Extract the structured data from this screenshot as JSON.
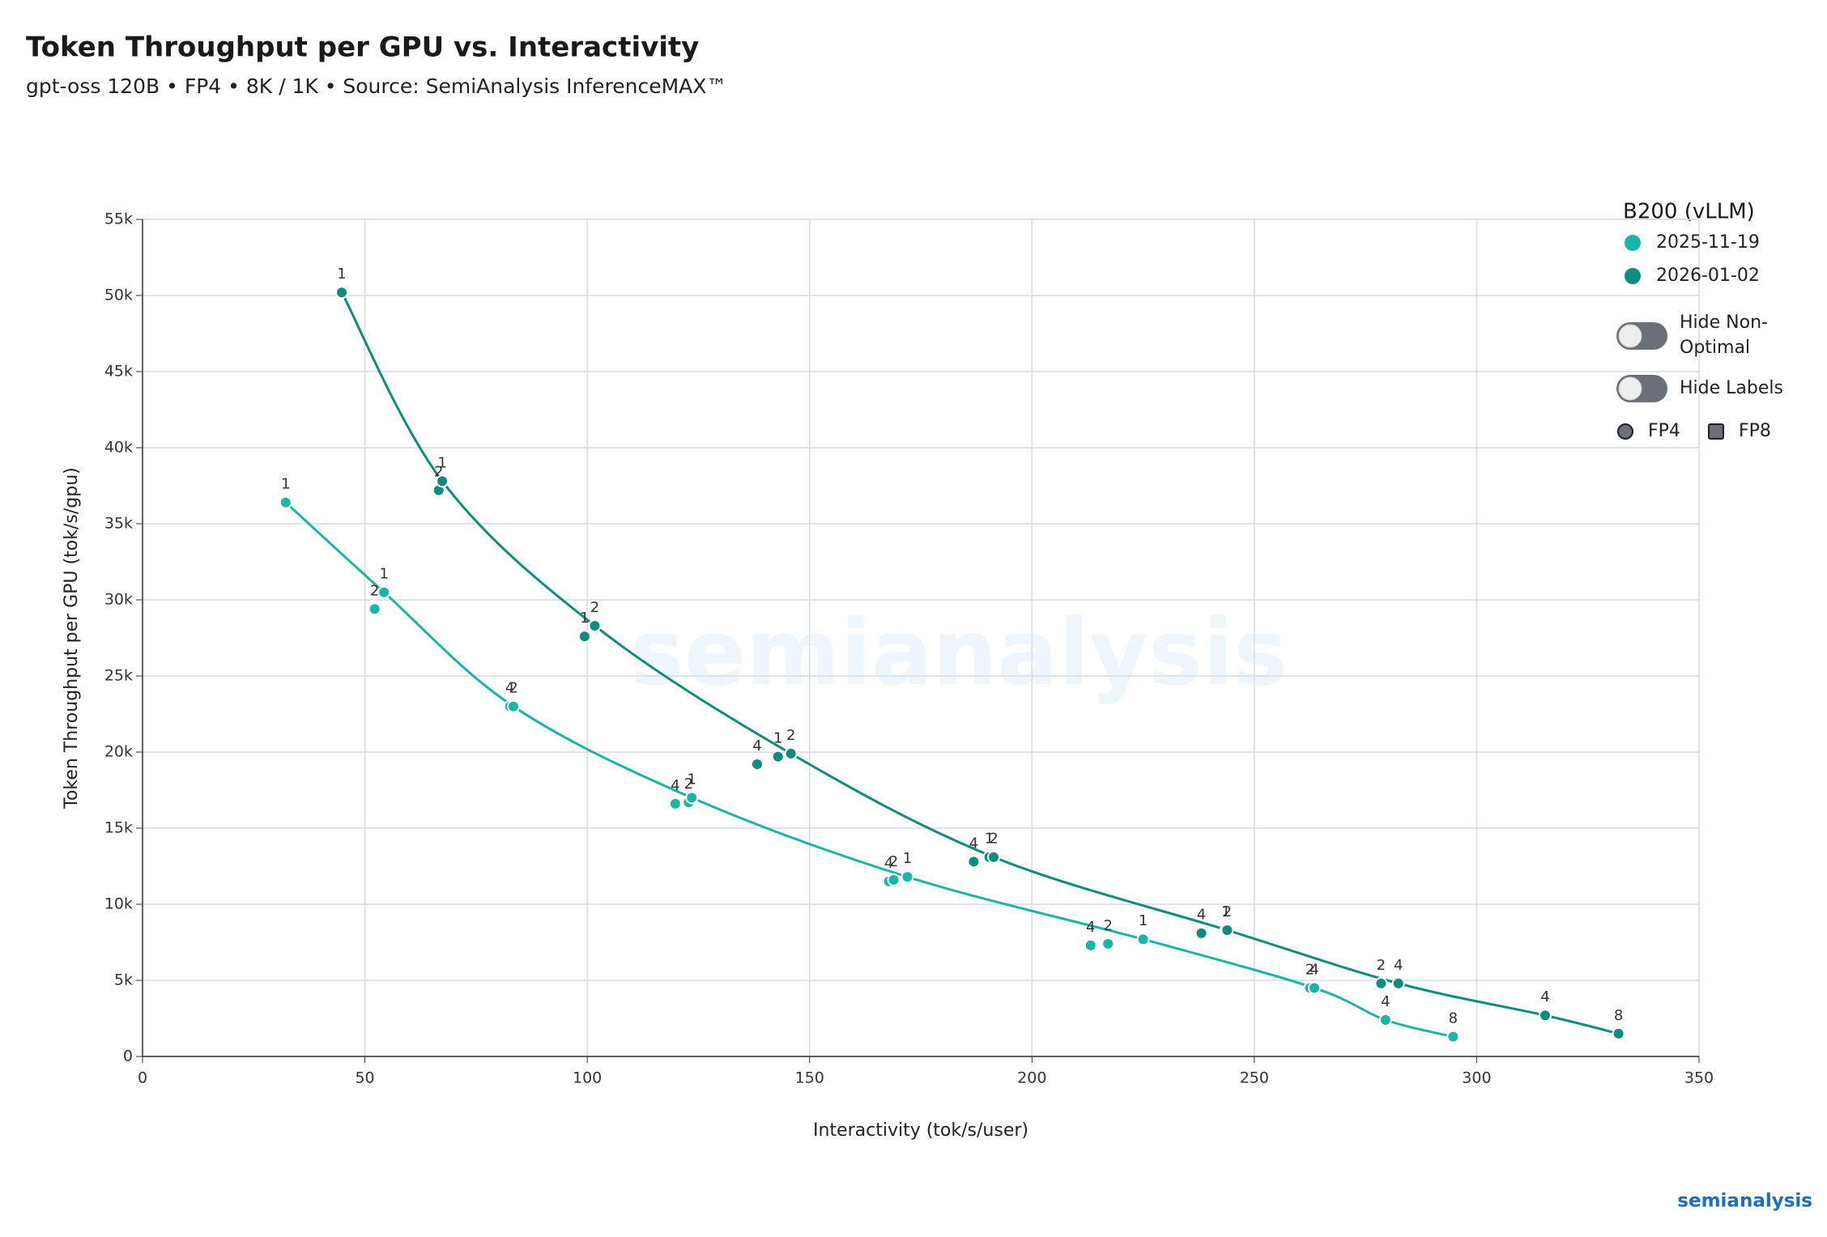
{
  "chart_data": {
    "type": "scatter",
    "title": "Token Throughput per GPU vs. Interactivity",
    "subtitle": "gpt-oss 120B • FP4 • 8K / 1K • Source: SemiAnalysis InferenceMAX™",
    "x_label": "Interactivity (tok/s/user)",
    "y_label": "Token Throughput per GPU (tok/s/gpu)",
    "xlim": [
      0,
      350
    ],
    "xticks": [
      0,
      50,
      100,
      150,
      200,
      250,
      300,
      350
    ],
    "ylim": [
      0,
      55000
    ],
    "yticks": [
      0,
      {
        "value": 5000,
        "label": "5k"
      },
      {
        "value": 10000,
        "label": "10k"
      },
      {
        "value": 15000,
        "label": "15k"
      },
      {
        "value": 20000,
        "label": "20k"
      },
      {
        "value": 25000,
        "label": "25k"
      },
      {
        "value": 30000,
        "label": "30k"
      },
      {
        "value": 35000,
        "label": "35k"
      },
      {
        "value": 40000,
        "label": "40k"
      },
      {
        "value": 45000,
        "label": "45k"
      },
      {
        "value": 50000,
        "label": "50k"
      },
      {
        "value": 55000,
        "label": "55k"
      }
    ],
    "grid": true,
    "legend_title": "B200 (vLLM)",
    "series": [
      {
        "name": "2025-11-19",
        "color": "#1cb5a3",
        "x": [
          32.2,
          52.2,
          54.3,
          82.6,
          83.4,
          119.8,
          122.8,
          123.5,
          167.8,
          168.9,
          172,
          213.2,
          217.1,
          225,
          262.5,
          263.5,
          279.5,
          294.7
        ],
        "values": [
          36400,
          29400,
          30500,
          23000,
          23000,
          16600,
          16700,
          17000,
          11500,
          11600,
          11800,
          7300,
          7400,
          7700,
          4500,
          4500,
          2400,
          1300
        ],
        "point_labels": [
          "1",
          "2",
          "1",
          "4",
          "2",
          "4",
          "2",
          "1",
          "4",
          "2",
          "1",
          "4",
          "2",
          "1",
          "2",
          "4",
          "4",
          "8"
        ]
      },
      {
        "name": "2026-01-02",
        "color": "#0f8c7c",
        "x": [
          44.8,
          66.6,
          67.4,
          99.4,
          101.7,
          138.2,
          142.9,
          145.8,
          186.9,
          190.4,
          191.4,
          238.1,
          243.6,
          243.9,
          278.5,
          282.4,
          315.4,
          331.9
        ],
        "values": [
          50200,
          37200,
          37800,
          27600,
          28300,
          19200,
          19700,
          19900,
          12800,
          13100,
          13100,
          8100,
          8300,
          8300,
          4800,
          4800,
          2700,
          1500
        ],
        "point_labels": [
          "1",
          "2",
          "1",
          "1",
          "2",
          "4",
          "1",
          "2",
          "4",
          "1",
          "2",
          "4",
          "1",
          "2",
          "2",
          "4",
          "4",
          "8"
        ]
      }
    ],
    "toggles": [
      "Hide Non-Optimal",
      "Hide Labels"
    ],
    "precision_legend": [
      "FP4",
      "FP8"
    ],
    "watermark": "semianalysis",
    "logo": "semianalysis"
  }
}
